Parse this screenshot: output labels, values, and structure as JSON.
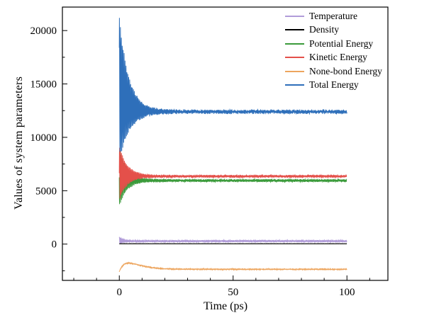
{
  "page": {
    "background": "#ffffff"
  },
  "chart_data": {
    "type": "line",
    "title": "",
    "xlabel": "Time (ps)",
    "ylabel": "Values of system parameters",
    "xlim": [
      -25,
      118
    ],
    "ylim": [
      -3400,
      22200
    ],
    "x_ticks": [
      0,
      50,
      100
    ],
    "x_minor_step": 10,
    "y_ticks": [
      0,
      5000,
      10000,
      15000,
      20000
    ],
    "y_minor_step": 2500,
    "grid": false,
    "legend_position": "top-right-inside",
    "frame_color": "#000000",
    "x_data_range_ps": [
      0,
      100
    ],
    "series": [
      {
        "name": "Temperature",
        "color": "#b19cd9",
        "settled_value": 280,
        "transient": {
          "mean_offset": 60,
          "mean_tau": 2,
          "amp0": 280,
          "amp_tau": 1.6,
          "amp_floor": 70,
          "freq": 2.6,
          "phase": 0.8,
          "noise": 35
        }
      },
      {
        "name": "Density",
        "color": "#000000",
        "settled_value": 30,
        "transient": {
          "mean_offset": 0,
          "mean_tau": 1,
          "amp0": 0,
          "amp_tau": 1,
          "amp_floor": 0,
          "freq": 1,
          "phase": 0,
          "noise": 4
        }
      },
      {
        "name": "Potential Energy",
        "color": "#3b9b3b",
        "settled_value": 5950,
        "transient": {
          "mean_offset": 350,
          "mean_tau": 4,
          "amp0": 2650,
          "amp_tau": 3.4,
          "amp_floor": 85,
          "freq": 2.35,
          "phase": 3.14,
          "noise": 55
        }
      },
      {
        "name": "Kinetic Energy",
        "color": "#e4504a",
        "settled_value": 6350,
        "transient": {
          "mean_offset": 250,
          "mean_tau": 4,
          "amp0": 2500,
          "amp_tau": 3.4,
          "amp_floor": 80,
          "freq": 2.35,
          "phase": 0,
          "noise": 55
        }
      },
      {
        "name": "None-bond Energy",
        "color": "#eda55e",
        "settled_value": -2360,
        "transient": {
          "mean_offset": -240,
          "mean_tau": 1.2,
          "amp0": 0,
          "amp_tau": 1,
          "amp_floor": 22,
          "freq": 3.1,
          "phase": 0.3,
          "noise": 30,
          "bump_height": 585,
          "bump_time": 4
        }
      },
      {
        "name": "Total Energy",
        "color": "#2e6fba",
        "settled_value": 12400,
        "transient": {
          "mean_offset": 2200,
          "mean_tau": 3.6,
          "amp0": 6600,
          "amp_tau": 4.3,
          "amp_floor": 110,
          "freq": 2.45,
          "phase": 0.6,
          "noise": 110
        }
      }
    ]
  }
}
